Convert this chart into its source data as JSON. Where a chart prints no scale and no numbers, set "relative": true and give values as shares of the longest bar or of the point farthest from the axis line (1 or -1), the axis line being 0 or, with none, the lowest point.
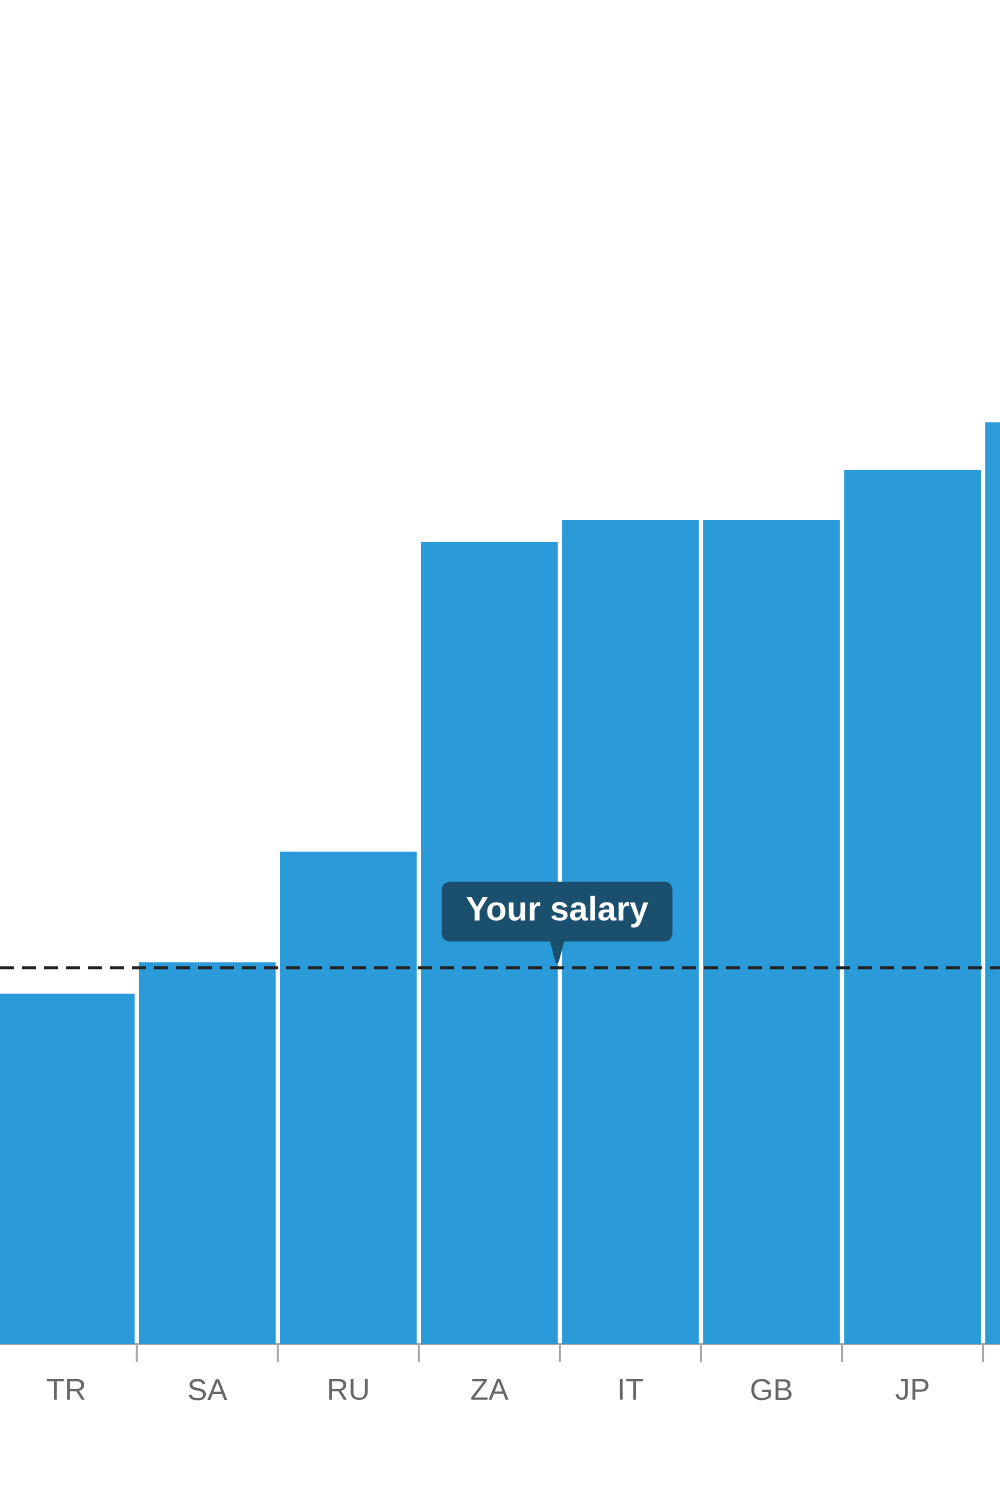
{
  "chart_data": {
    "type": "bar",
    "relative": true,
    "categories": [
      "TR",
      "SA",
      "RU",
      "ZA",
      "IT",
      "GB",
      "JP",
      null
    ],
    "values": [
      0.38,
      0.414,
      0.534,
      0.87,
      0.894,
      0.894,
      0.948,
      1
    ],
    "color": "#2b9ad8",
    "ref_lines": [
      {
        "axis": "y",
        "value": 0.408,
        "label": "Your salary",
        "color": "#222222",
        "line_style": "dashed"
      }
    ]
  }
}
